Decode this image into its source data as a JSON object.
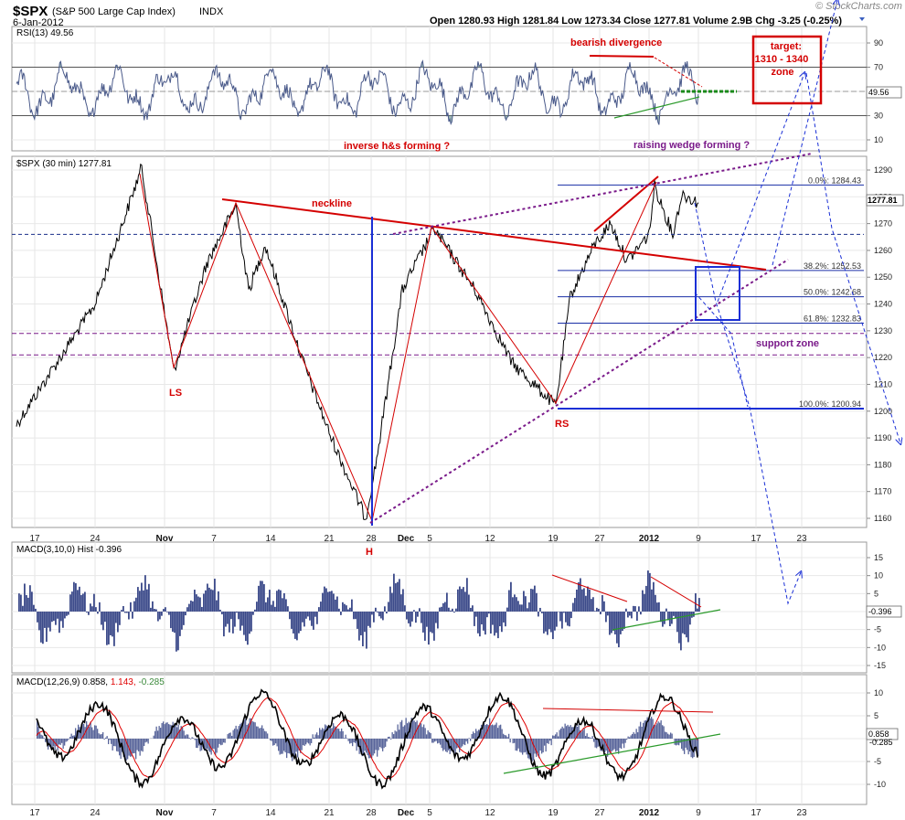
{
  "header": {
    "symbol": "$SPX",
    "description": "(S&P 500 Large Cap Index)",
    "exchange": "INDX",
    "date": "6-Jan-2012",
    "quote": "Open 1280.93  High 1281.84  Low 1273.34  Close 1277.81  Volume 2.9B  Chg -3.25 (-0.25%)",
    "logo": "© StockCharts.com"
  },
  "panels": {
    "rsi": {
      "label": "RSI(13) 49.56",
      "last_tag": "49.56"
    },
    "price": {
      "label": "$SPX (30 min) 1277.81",
      "last_tag": "1277.81"
    },
    "hist": {
      "label": "MACD(3,10,0) Hist -0.396",
      "last_tag": "-0.396"
    },
    "macd": {
      "label_main": "MACD(12,26,9) 0.858,",
      "label_signal": "1.143,",
      "label_hist": "-0.285",
      "last_tag": "0.858",
      "last_tag2": "-0.285"
    }
  },
  "colors": {
    "price_line": "#000000",
    "hist_fill": "#3c4a8a",
    "rsi_fill": "#5d8a84",
    "macd_line": "#000000",
    "signal_line": "#e00000",
    "annotation_red": "#d40000",
    "annotation_purple": "#7a1a8a",
    "annotation_blue": "#1a2fd6",
    "annotation_green": "#2a9a2a"
  },
  "annotations": {
    "bearish_divergence": "bearish divergence",
    "target_line1": "target:",
    "target_line2": "1310 - 1340",
    "target_line3": "zone",
    "inverse_hs": "inverse h&s forming ?",
    "raising_wedge": "raising wedge forming ?",
    "neckline": "neckline",
    "support_zone": "support zone",
    "ls": "LS",
    "h": "H",
    "rs": "RS"
  },
  "chart_data": [
    {
      "type": "line",
      "panel": "rsi",
      "ylim": [
        0,
        100
      ],
      "yticks": [
        10,
        30,
        50,
        70,
        90
      ],
      "reference_levels": [
        30,
        50,
        70
      ],
      "last_value": 49.56
    },
    {
      "type": "line",
      "panel": "price",
      "ylim": [
        1155,
        1296
      ],
      "yticks": [
        1160,
        1170,
        1180,
        1190,
        1200,
        1210,
        1220,
        1230,
        1240,
        1250,
        1260,
        1270,
        1280,
        1290
      ],
      "x_tick_labels": [
        "17",
        "24",
        "Nov",
        "7",
        "14",
        "21",
        "28",
        "Dec",
        "5",
        "12",
        "19",
        "27",
        "2012",
        "9",
        "17",
        "23"
      ],
      "x_tick_bold": [
        "Nov",
        "Dec",
        "2012"
      ],
      "keypoints": [
        [
          "17",
          1195
        ],
        [
          "24",
          1240
        ],
        [
          "29",
          1291
        ],
        [
          "31",
          1215
        ],
        [
          "Nov 3",
          1255
        ],
        [
          "Nov 8",
          1277
        ],
        [
          "Nov 11",
          1245
        ],
        [
          "Nov 14",
          1262
        ],
        [
          "Nov 17",
          1220
        ],
        [
          "Nov 21",
          1192
        ],
        [
          "Nov 25",
          1160
        ],
        [
          "28",
          1182
        ],
        [
          "Nov 30",
          1245
        ],
        [
          "Dec 2",
          1252
        ],
        [
          "Dec 7",
          1268
        ],
        [
          "Dec 12",
          1245
        ],
        [
          "Dec 16",
          1218
        ],
        [
          "19",
          1202
        ],
        [
          "Dec 21",
          1243
        ],
        [
          "Dec 23",
          1262
        ],
        [
          "27",
          1270
        ],
        [
          "Dec 29",
          1256
        ],
        [
          "2012",
          1266
        ],
        [
          "Jan 3",
          1284
        ],
        [
          "Jan 4",
          1266
        ],
        [
          "Jan 5",
          1281
        ],
        [
          "Jan 6",
          1277.81
        ]
      ],
      "fibonacci": [
        {
          "label": "0.0%",
          "value": 1284.43
        },
        {
          "label": "38.2%",
          "value": 1252.53
        },
        {
          "label": "50.0%",
          "value": 1242.68
        },
        {
          "label": "61.8%",
          "value": 1232.83
        },
        {
          "label": "100.0%",
          "value": 1200.94
        }
      ],
      "last_value": 1277.81
    },
    {
      "type": "bar",
      "panel": "macd_hist",
      "ylim": [
        -18,
        18
      ],
      "yticks": [
        -15,
        -10,
        -5,
        0,
        5,
        10,
        15
      ],
      "last_value": -0.396
    },
    {
      "type": "line",
      "panel": "macd",
      "ylim": [
        -13,
        14
      ],
      "yticks": [
        -10,
        -5,
        0,
        5,
        10
      ],
      "series": [
        {
          "name": "MACD(12,26,9)",
          "last_value": 0.858
        },
        {
          "name": "Signal",
          "last_value": 1.143
        },
        {
          "name": "Hist",
          "last_value": -0.285
        }
      ]
    }
  ]
}
